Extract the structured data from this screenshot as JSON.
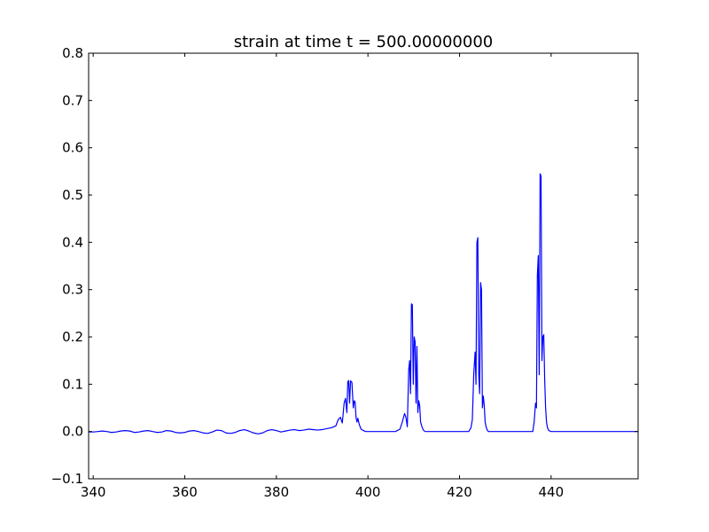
{
  "chart_data": {
    "type": "line",
    "title": "strain at time t =   500.00000000",
    "xlabel": "",
    "ylabel": "",
    "xlim": [
      339,
      459
    ],
    "ylim": [
      -0.1,
      0.8
    ],
    "xticks": [
      340,
      360,
      380,
      400,
      420,
      440
    ],
    "xtick_labels": [
      "340",
      "360",
      "380",
      "400",
      "420",
      "440"
    ],
    "yticks": [
      -0.1,
      0.0,
      0.1,
      0.2,
      0.3,
      0.4,
      0.5,
      0.6,
      0.7,
      0.8
    ],
    "ytick_labels": [
      "−0.1",
      "0.0",
      "0.1",
      "0.2",
      "0.3",
      "0.4",
      "0.5",
      "0.6",
      "0.7",
      "0.8"
    ],
    "grid": false,
    "legend": "none",
    "line_color": "#0000ff",
    "series": [
      {
        "x": [
          339,
          340,
          341,
          342,
          343,
          344,
          345,
          346,
          347,
          348,
          349,
          350,
          351,
          352,
          353,
          354,
          355,
          356,
          357,
          358,
          359,
          360,
          361,
          362,
          363,
          364,
          365,
          366,
          367,
          368,
          369,
          370,
          371,
          372,
          373,
          374,
          375,
          376,
          377,
          378,
          379,
          380,
          381,
          382,
          383,
          384,
          385,
          386,
          387,
          388,
          389,
          390,
          391,
          392,
          393,
          393.5,
          394,
          394.4,
          394.8,
          395.1,
          395.4,
          395.6,
          395.8,
          396.0,
          396.2,
          396.5,
          396.8,
          397.0,
          397.2,
          397.4,
          397.6,
          397.8,
          398.1,
          398.5,
          399,
          399.5,
          400,
          401,
          402,
          403,
          404,
          405,
          406,
          407,
          407.5,
          408,
          408.3,
          408.6,
          408.9,
          409.1,
          409.3,
          409.5,
          409.7,
          409.9,
          410.1,
          410.3,
          410.5,
          410.7,
          410.9,
          411.1,
          411.3,
          411.5,
          411.8,
          412.1,
          412.5,
          413,
          414,
          415,
          416,
          417,
          418,
          419,
          420,
          421,
          422,
          422.5,
          422.8,
          423.1,
          423.4,
          423.6,
          423.8,
          424.0,
          424.2,
          424.4,
          424.6,
          424.8,
          425.0,
          425.2,
          425.4,
          425.6,
          425.8,
          426.0,
          426.3,
          426.6,
          427,
          428,
          429,
          430,
          431,
          432,
          433,
          434,
          435,
          436,
          436.3,
          436.6,
          436.8,
          437.0,
          437.2,
          437.4,
          437.6,
          437.8,
          438.0,
          438.2,
          438.4,
          438.6,
          438.8,
          439.0,
          439.2,
          439.5,
          440,
          441,
          445,
          450,
          455,
          459
        ],
        "y": [
          -0.001,
          -0.001,
          0.0,
          0.001,
          0.0,
          -0.002,
          -0.001,
          0.001,
          0.002,
          0.001,
          -0.002,
          -0.001,
          0.001,
          0.002,
          0.0,
          -0.002,
          -0.001,
          0.002,
          0.001,
          -0.002,
          -0.003,
          -0.002,
          0.001,
          0.002,
          0.0,
          -0.003,
          -0.004,
          -0.001,
          0.003,
          0.002,
          -0.003,
          -0.004,
          -0.002,
          0.002,
          0.004,
          0.001,
          -0.003,
          -0.005,
          -0.003,
          0.002,
          0.004,
          0.002,
          -0.001,
          0.001,
          0.003,
          0.004,
          0.002,
          0.003,
          0.005,
          0.004,
          0.003,
          0.004,
          0.006,
          0.008,
          0.012,
          0.025,
          0.03,
          0.018,
          0.06,
          0.07,
          0.04,
          0.105,
          0.108,
          0.06,
          0.107,
          0.104,
          0.05,
          0.065,
          0.062,
          0.03,
          0.02,
          0.028,
          0.015,
          0.005,
          0.002,
          0.0,
          0.0,
          0.0,
          0.0,
          0.0,
          0.0,
          0.0,
          0.0,
          0.005,
          0.02,
          0.038,
          0.03,
          0.01,
          0.13,
          0.15,
          0.08,
          0.27,
          0.268,
          0.1,
          0.2,
          0.19,
          0.06,
          0.18,
          0.04,
          0.065,
          0.055,
          0.02,
          0.01,
          0.003,
          0.0,
          0.0,
          0.0,
          0.0,
          0.0,
          0.0,
          0.0,
          0.0,
          0.0,
          0.0,
          0.0,
          0.008,
          0.025,
          0.12,
          0.168,
          0.1,
          0.4,
          0.41,
          0.12,
          0.08,
          0.315,
          0.3,
          0.05,
          0.075,
          0.055,
          0.02,
          0.01,
          0.004,
          0.0,
          0.0,
          0.0,
          0.0,
          0.0,
          0.0,
          0.0,
          0.0,
          0.0,
          0.0,
          0.0,
          0.0,
          0.02,
          0.06,
          0.05,
          0.33,
          0.372,
          0.12,
          0.545,
          0.54,
          0.15,
          0.2,
          0.205,
          0.11,
          0.05,
          0.02,
          0.008,
          0.002,
          0.0,
          0.0,
          0.0,
          0.0,
          0.0,
          0.0
        ]
      }
    ]
  }
}
